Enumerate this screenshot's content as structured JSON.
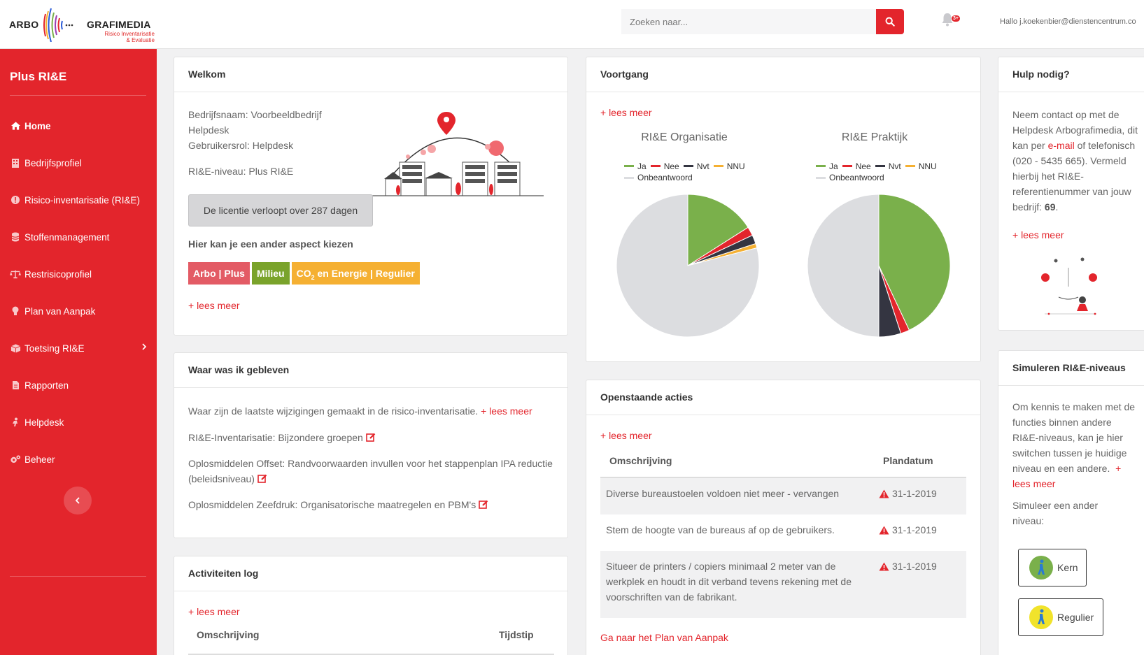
{
  "header": {
    "logo_left": "ARBO",
    "logo_right": "GRAFIMEDIA",
    "logo_sub1": "Risico Inventarisatie",
    "logo_sub2": "& Evaluatie",
    "search_placeholder": "Zoeken naar...",
    "notifications_badge": "3+",
    "user_greeting": "Hallo j.koekenbier@dienstencentrum.co"
  },
  "sidebar": {
    "brand": "Plus RI&E",
    "items": [
      {
        "label": "Home",
        "icon": "home-icon",
        "active": true
      },
      {
        "label": "Bedrijfsprofiel",
        "icon": "building-icon"
      },
      {
        "label": "Risico-inventarisatie (RI&E)",
        "icon": "alert-circle-icon"
      },
      {
        "label": "Stoffenmanagement",
        "icon": "database-icon"
      },
      {
        "label": "Restrisicoprofiel",
        "icon": "balance-icon"
      },
      {
        "label": "Plan van Aanpak",
        "icon": "lightbulb-icon"
      },
      {
        "label": "Toetsing RI&E",
        "icon": "box-icon",
        "has_submenu": true
      },
      {
        "label": "Rapporten",
        "icon": "document-icon"
      },
      {
        "label": "Helpdesk",
        "icon": "person-icon"
      },
      {
        "label": "Beheer",
        "icon": "cogs-icon"
      }
    ]
  },
  "welkom": {
    "title": "Welkom",
    "bedrijfsnaam": "Bedrijfsnaam: Voorbeeldbedrijf",
    "helpdesk": "Helpdesk",
    "rol": "Gebruikersrol: Helpdesk",
    "niveau": "RI&E-niveau: Plus RI&E",
    "licentie": "De licentie verloopt over 287 dagen",
    "aspect_label": "Hier kan je een ander aspect kiezen",
    "aspects": [
      {
        "label": "Arbo | Plus",
        "color": "#e35b65"
      },
      {
        "label": "Milieu",
        "color": "#7aa32b"
      },
      {
        "label_main": "CO",
        "label_sub": "2",
        "label_rest": " en Energie | Regulier",
        "color": "#f5b032"
      }
    ],
    "lees_meer": "+ lees meer"
  },
  "voortgang": {
    "title": "Voortgang",
    "lees_meer": "+ lees meer",
    "legend": [
      {
        "label": "Ja",
        "color": "#7ab04b"
      },
      {
        "label": "Nee",
        "color": "#e3252c"
      },
      {
        "label": "Nvt",
        "color": "#343541"
      },
      {
        "label": "NNU",
        "color": "#f5b032"
      },
      {
        "label": "Onbeantwoord",
        "color": "#dcdde0"
      }
    ]
  },
  "chart_data": [
    {
      "type": "pie",
      "title": "RI&E Organisatie",
      "categories": [
        "Ja",
        "Nee",
        "Nvt",
        "NNU",
        "Onbeantwoord"
      ],
      "values": [
        16,
        2,
        2,
        1,
        79
      ]
    },
    {
      "type": "pie",
      "title": "RI&E Praktijk",
      "categories": [
        "Ja",
        "Nee",
        "Nvt",
        "NNU",
        "Onbeantwoord"
      ],
      "values": [
        43,
        2,
        5,
        0,
        50
      ]
    }
  ],
  "hulp": {
    "title": "Hulp nodig?",
    "text_1": "Neem contact op met de Helpdesk Arbografimedia, dit kan per",
    "email_link": "e-mail",
    "text_2": "of telefonisch (020 - 5435 665). Vermeld hierbij het RI&E-referentienummer van jouw bedrijf:",
    "ref_nummer": "69",
    "lees_meer": "+ lees meer"
  },
  "gebleven": {
    "title": "Waar was ik gebleven",
    "intro": "Waar zijn de laatste wijzigingen gemaakt in de risico-inventarisatie.",
    "lees_meer": "+ lees meer",
    "items": [
      "RI&E-Inventarisatie: Bijzondere groepen",
      "Oplosmiddelen Offset: Randvoorwaarden invullen voor het stappenplan IPA reductie (beleidsniveau)",
      "Oplosmiddelen Zeefdruk: Organisatorische maatregelen en PBM's"
    ]
  },
  "acties": {
    "title": "Openstaande acties",
    "lees_meer": "+ lees meer",
    "col_omschrijving": "Omschrijving",
    "col_plandatum": "Plandatum",
    "rows": [
      {
        "omschrijving": "Diverse bureaustoelen voldoen niet meer - vervangen",
        "datum": "31-1-2019"
      },
      {
        "omschrijving": "Stem de hoogte van de bureaus af op de gebruikers.",
        "datum": "31-1-2019"
      },
      {
        "omschrijving": "Situeer de printers / copiers minimaal 2 meter van de werkplek en houdt in dit verband tevens rekening met de voorschriften van de fabrikant.",
        "datum": "31-1-2019"
      }
    ],
    "footer_link": "Ga naar het Plan van Aanpak"
  },
  "activiteiten": {
    "title": "Activiteiten log",
    "lees_meer": "+ lees meer",
    "col_omschrijving": "Omschrijving",
    "col_tijdstip": "Tijdstip"
  },
  "simuleren": {
    "title": "Simuleren RI&E-niveaus",
    "text": "Om kennis te maken met de functies binnen andere RI&E-niveaus, kan je hier switchen tussen je huidige niveau en een andere.",
    "lees_meer": "+ lees meer",
    "prompt": "Simuleer een ander niveau:",
    "options": [
      {
        "label": "Kern",
        "color": "#7ab04b"
      },
      {
        "label": "Regulier",
        "color": "#f1e32b"
      }
    ]
  }
}
